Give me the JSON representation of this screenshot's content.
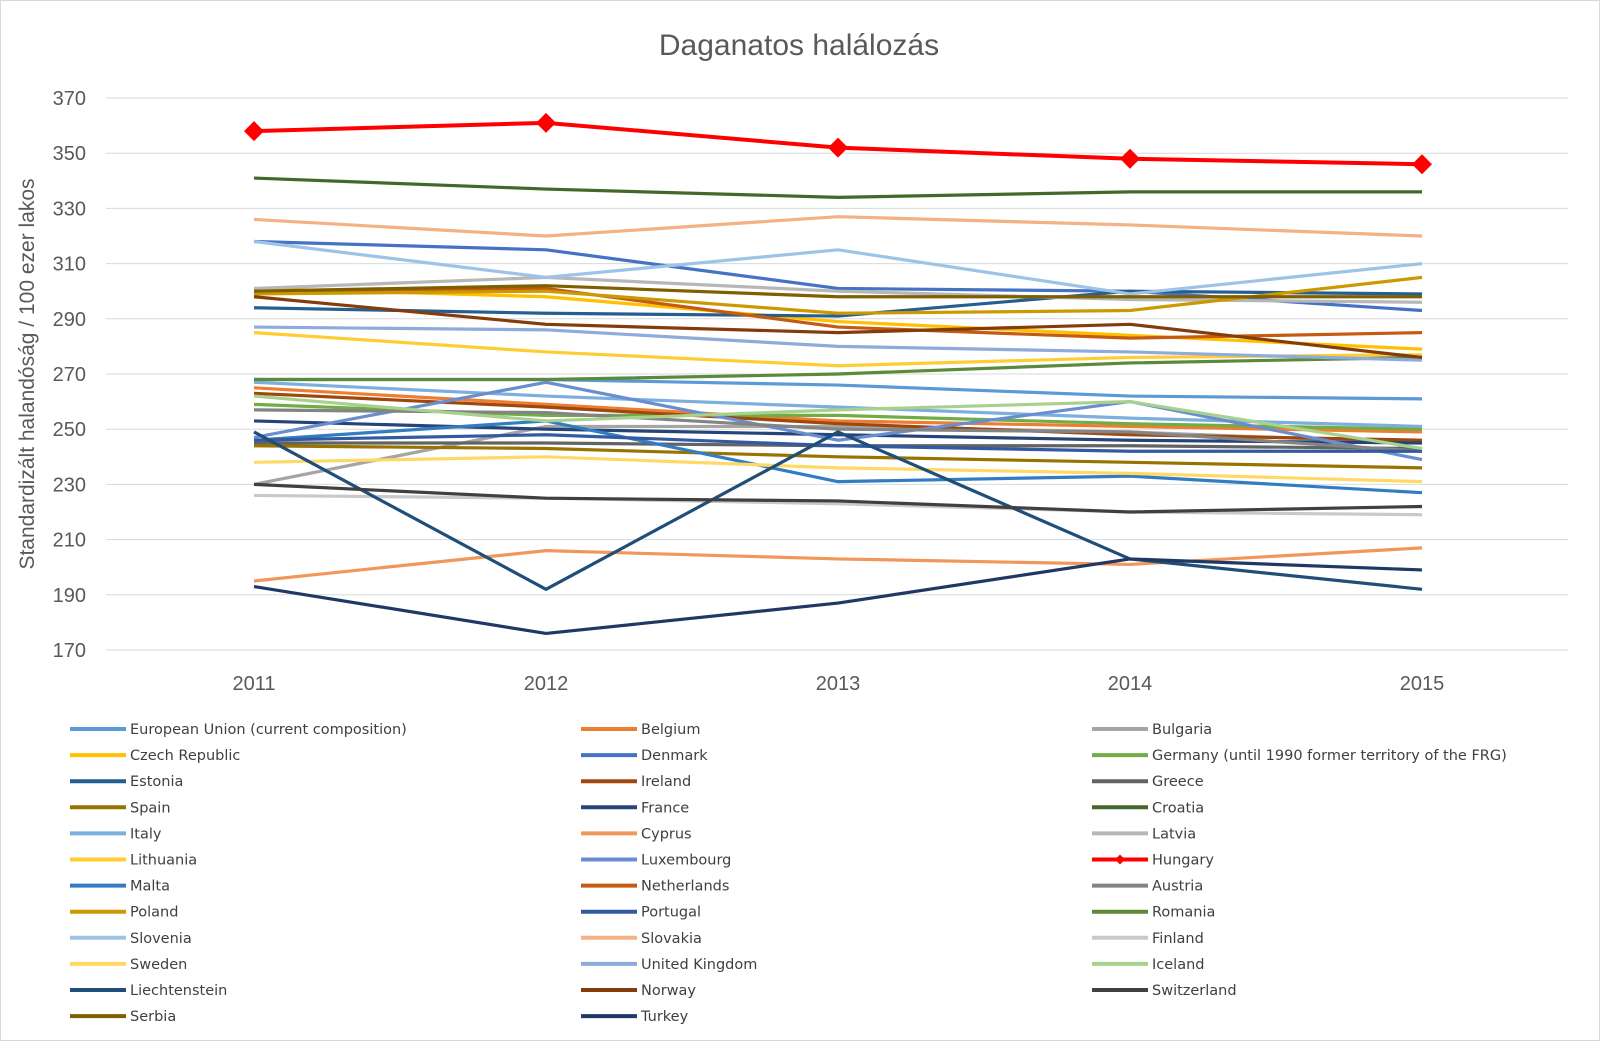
{
  "chart_data": {
    "type": "line",
    "title": "Daganatos halálozás",
    "ylabel": "Standardizált halandóság / 100 ezer lakos",
    "xlabel": "",
    "categories": [
      "2011",
      "2012",
      "2013",
      "2014",
      "2015"
    ],
    "yticks": [
      "370",
      "350",
      "330",
      "310",
      "290",
      "270",
      "250",
      "230",
      "210",
      "190",
      "170"
    ],
    "ylim": [
      170,
      370
    ],
    "grid": true,
    "legend_position": "bottom",
    "series": [
      {
        "name": "European Union (current composition)",
        "color": "#5b9bd5",
        "values": [
          268,
          268,
          266,
          262,
          261
        ]
      },
      {
        "name": "Belgium",
        "color": "#ed7d31",
        "values": [
          265,
          259,
          253,
          251,
          249
        ]
      },
      {
        "name": "Bulgaria",
        "color": "#a5a5a5",
        "values": [
          230,
          251,
          251,
          249,
          245
        ]
      },
      {
        "name": "Czech Republic",
        "color": "#ffc000",
        "values": [
          301,
          298,
          289,
          284,
          279
        ]
      },
      {
        "name": "Denmark",
        "color": "#4472c4",
        "values": [
          318,
          315,
          301,
          300,
          293
        ]
      },
      {
        "name": "Germany (until 1990 former territory of the FRG)",
        "color": "#70ad47",
        "values": [
          259,
          255,
          255,
          252,
          250
        ]
      },
      {
        "name": "Estonia",
        "color": "#255e91",
        "values": [
          294,
          292,
          291,
          300,
          299
        ]
      },
      {
        "name": "Ireland",
        "color": "#9e480e",
        "values": [
          263,
          258,
          252,
          248,
          246
        ]
      },
      {
        "name": "Greece",
        "color": "#636363",
        "values": [
          245,
          245,
          244,
          244,
          243
        ]
      },
      {
        "name": "Spain",
        "color": "#997300",
        "values": [
          244,
          243,
          240,
          238,
          236
        ]
      },
      {
        "name": "France",
        "color": "#264478",
        "values": [
          253,
          250,
          248,
          246,
          245
        ]
      },
      {
        "name": "Croatia",
        "color": "#43682b",
        "values": [
          341,
          337,
          334,
          336,
          336
        ]
      },
      {
        "name": "Italy",
        "color": "#7cafdd",
        "values": [
          267,
          262,
          258,
          254,
          251
        ]
      },
      {
        "name": "Cyprus",
        "color": "#f1975a",
        "values": [
          195,
          206,
          203,
          201,
          207
        ]
      },
      {
        "name": "Latvia",
        "color": "#b7b7b7",
        "values": [
          301,
          305,
          300,
          297,
          296
        ]
      },
      {
        "name": "Lithuania",
        "color": "#ffcd33",
        "values": [
          285,
          278,
          273,
          276,
          277
        ]
      },
      {
        "name": "Luxembourg",
        "color": "#698ed0",
        "values": [
          247,
          267,
          246,
          260,
          239
        ]
      },
      {
        "name": "Hungary",
        "color": "#ff0000",
        "values": [
          358,
          361,
          352,
          348,
          346
        ]
      },
      {
        "name": "Malta",
        "color": "#327dc2",
        "values": [
          246,
          253,
          231,
          233,
          227
        ]
      },
      {
        "name": "Netherlands",
        "color": "#c55a11",
        "values": [
          300,
          301,
          287,
          283,
          285
        ]
      },
      {
        "name": "Austria",
        "color": "#848484",
        "values": [
          257,
          256,
          250,
          249,
          242
        ]
      },
      {
        "name": "Poland",
        "color": "#cc9a00",
        "values": [
          299,
          300,
          292,
          293,
          305
        ]
      },
      {
        "name": "Portugal",
        "color": "#335aa1",
        "values": [
          246,
          248,
          244,
          242,
          242
        ]
      },
      {
        "name": "Romania",
        "color": "#5a8a3a",
        "values": [
          268,
          268,
          270,
          274,
          276
        ]
      },
      {
        "name": "Slovenia",
        "color": "#9dc3e6",
        "values": [
          318,
          305,
          315,
          299,
          310
        ]
      },
      {
        "name": "Slovakia",
        "color": "#f4b183",
        "values": [
          326,
          320,
          327,
          324,
          320
        ]
      },
      {
        "name": "Finland",
        "color": "#c9c9c9",
        "values": [
          226,
          225,
          223,
          220,
          219
        ]
      },
      {
        "name": "Sweden",
        "color": "#ffd966",
        "values": [
          238,
          240,
          236,
          234,
          231
        ]
      },
      {
        "name": "United Kingdom",
        "color": "#8faadc",
        "values": [
          287,
          286,
          280,
          278,
          275
        ]
      },
      {
        "name": "Iceland",
        "color": "#a9d18e",
        "values": [
          262,
          253,
          257,
          260,
          243
        ]
      },
      {
        "name": "Liechtenstein",
        "color": "#1f4e79",
        "values": [
          249,
          192,
          249,
          203,
          192
        ]
      },
      {
        "name": "Norway",
        "color": "#843c0c",
        "values": [
          298,
          288,
          285,
          288,
          276
        ]
      },
      {
        "name": "Switzerland",
        "color": "#404040",
        "values": [
          230,
          225,
          224,
          220,
          222
        ]
      },
      {
        "name": "Serbia",
        "color": "#7f6000",
        "values": [
          300,
          302,
          298,
          298,
          298
        ]
      },
      {
        "name": "Turkey",
        "color": "#203864",
        "values": [
          193,
          176,
          187,
          203,
          199
        ]
      }
    ]
  }
}
